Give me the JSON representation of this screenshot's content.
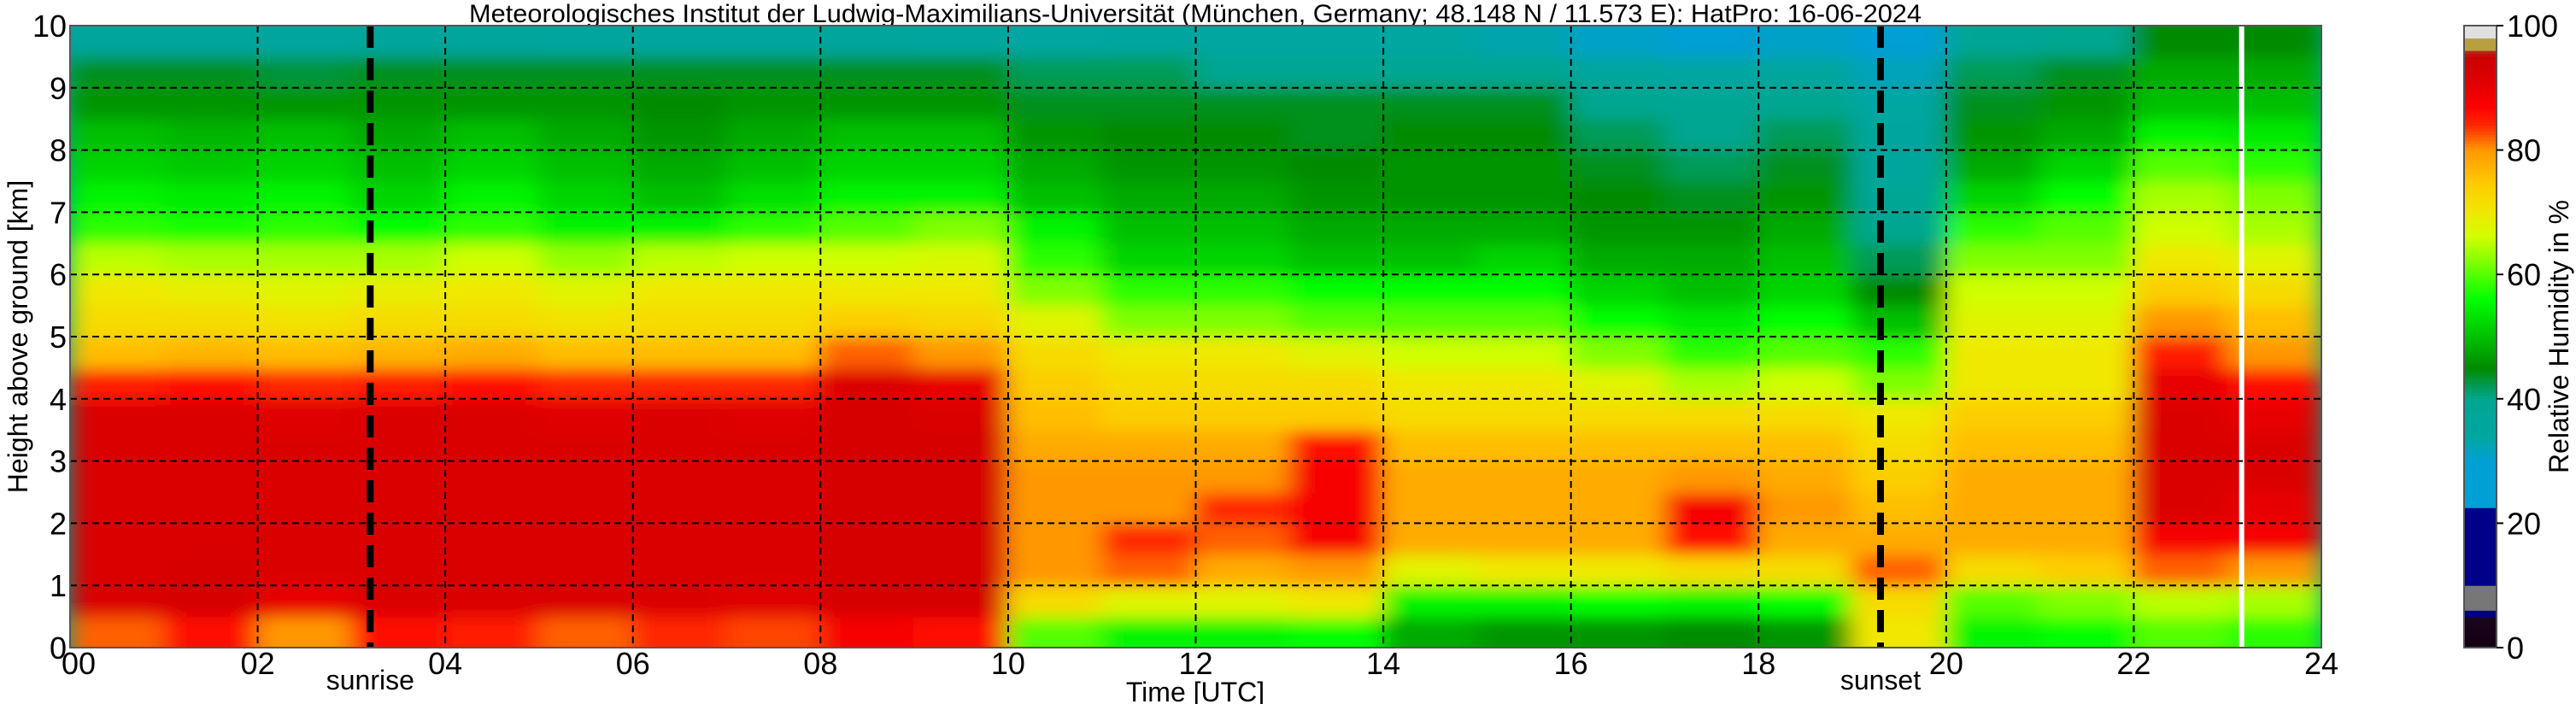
{
  "chart_data": {
    "type": "heatmap",
    "title": "Meteorologisches Institut der Ludwig-Maximilians-Universität (München, Germany; 48.148 N / 11.573 E):    HatPro: 16-06-2024",
    "xlabel": "Time [UTC]",
    "ylabel": "Height above ground [km]",
    "colorbar_label": "Relative Humidity in %",
    "xlim": [
      0,
      24
    ],
    "ylim": [
      0,
      10
    ],
    "clim": [
      0,
      100
    ],
    "grid": true,
    "x_ticks": [
      "00",
      "02",
      "04",
      "06",
      "08",
      "10",
      "12",
      "14",
      "16",
      "18",
      "20",
      "22",
      "24"
    ],
    "y_ticks": [
      "0",
      "1",
      "2",
      "3",
      "4",
      "5",
      "6",
      "7",
      "8",
      "9",
      "10"
    ],
    "colorbar_ticks": [
      "0",
      "20",
      "40",
      "60",
      "80",
      "100"
    ],
    "annotations": [
      {
        "label": "sunrise",
        "time_utc": 3.2
      },
      {
        "label": "sunset",
        "time_utc": 19.3
      }
    ],
    "missing_data_time_utc": 23.15,
    "x_hours": [
      0.5,
      1.5,
      2.5,
      3.5,
      4.5,
      5.5,
      6.5,
      7.5,
      8.5,
      9.5,
      10.5,
      11.5,
      12.5,
      13.5,
      14.5,
      15.5,
      16.5,
      17.5,
      18.5,
      19.5,
      20.5,
      21.5,
      22.5,
      23.5
    ],
    "y_km": [
      0.25,
      0.75,
      1.25,
      1.75,
      2.25,
      2.75,
      3.25,
      3.75,
      4.25,
      4.75,
      5.25,
      5.75,
      6.25,
      6.75,
      7.25,
      7.75,
      8.25,
      8.75,
      9.25,
      9.75
    ],
    "profiles_by_hour": [
      [
        82,
        92,
        92,
        92,
        92,
        92,
        92,
        92,
        85,
        76,
        72,
        70,
        65,
        58,
        55,
        52,
        50,
        46,
        44,
        36
      ],
      [
        86,
        93,
        93,
        92,
        92,
        92,
        92,
        92,
        86,
        77,
        72,
        69,
        64,
        57,
        54,
        51,
        49,
        46,
        44,
        36
      ],
      [
        80,
        90,
        92,
        92,
        92,
        92,
        92,
        91,
        84,
        76,
        71,
        68,
        64,
        58,
        55,
        52,
        50,
        46,
        43,
        35
      ],
      [
        86,
        92,
        92,
        92,
        92,
        92,
        92,
        92,
        85,
        77,
        72,
        69,
        64,
        56,
        52,
        50,
        48,
        46,
        44,
        36
      ],
      [
        85,
        92,
        92,
        92,
        92,
        92,
        92,
        92,
        86,
        78,
        72,
        70,
        66,
        58,
        55,
        52,
        50,
        46,
        44,
        36
      ],
      [
        82,
        92,
        92,
        92,
        92,
        92,
        92,
        91,
        84,
        76,
        71,
        68,
        63,
        55,
        52,
        50,
        48,
        46,
        44,
        35
      ],
      [
        84,
        92,
        92,
        92,
        92,
        92,
        92,
        92,
        84,
        76,
        72,
        70,
        65,
        55,
        50,
        48,
        46,
        45,
        44,
        35
      ],
      [
        83,
        91,
        92,
        92,
        92,
        92,
        92,
        91,
        84,
        76,
        72,
        70,
        66,
        58,
        53,
        50,
        48,
        46,
        44,
        35
      ],
      [
        88,
        93,
        93,
        93,
        93,
        93,
        93,
        93,
        92,
        82,
        74,
        70,
        66,
        60,
        55,
        52,
        50,
        46,
        44,
        36
      ],
      [
        86,
        93,
        93,
        93,
        93,
        93,
        93,
        92,
        90,
        80,
        73,
        70,
        67,
        62,
        55,
        52,
        50,
        46,
        44,
        35
      ],
      [
        60,
        72,
        80,
        80,
        80,
        80,
        78,
        76,
        74,
        72,
        68,
        62,
        58,
        55,
        50,
        48,
        46,
        44,
        42,
        34
      ],
      [
        55,
        68,
        82,
        84,
        80,
        80,
        78,
        74,
        72,
        70,
        62,
        58,
        52,
        50,
        48,
        46,
        45,
        44,
        42,
        35
      ],
      [
        55,
        68,
        78,
        82,
        84,
        80,
        78,
        74,
        72,
        70,
        62,
        58,
        52,
        50,
        48,
        46,
        45,
        44,
        40,
        34
      ],
      [
        56,
        70,
        80,
        88,
        88,
        88,
        86,
        74,
        72,
        68,
        60,
        56,
        50,
        48,
        46,
        45,
        44,
        44,
        40,
        34
      ],
      [
        48,
        55,
        68,
        78,
        78,
        78,
        76,
        72,
        70,
        66,
        60,
        56,
        50,
        48,
        46,
        46,
        45,
        44,
        40,
        34
      ],
      [
        46,
        55,
        70,
        78,
        78,
        78,
        76,
        72,
        70,
        66,
        60,
        56,
        52,
        48,
        46,
        46,
        45,
        44,
        40,
        33
      ],
      [
        46,
        56,
        70,
        78,
        78,
        78,
        76,
        72,
        68,
        62,
        56,
        52,
        48,
        46,
        45,
        44,
        42,
        40,
        36,
        31
      ],
      [
        45,
        55,
        72,
        86,
        88,
        80,
        76,
        72,
        64,
        58,
        54,
        50,
        48,
        46,
        44,
        42,
        40,
        38,
        34,
        30
      ],
      [
        46,
        56,
        72,
        78,
        80,
        78,
        76,
        72,
        66,
        60,
        56,
        52,
        50,
        48,
        46,
        44,
        42,
        40,
        36,
        31
      ],
      [
        70,
        72,
        82,
        78,
        76,
        74,
        72,
        70,
        62,
        58,
        50,
        45,
        42,
        40,
        38,
        36,
        35,
        34,
        32,
        30
      ],
      [
        55,
        60,
        72,
        78,
        78,
        78,
        76,
        74,
        70,
        70,
        68,
        66,
        62,
        58,
        52,
        48,
        46,
        44,
        42,
        38
      ],
      [
        56,
        62,
        74,
        78,
        78,
        78,
        76,
        74,
        70,
        70,
        68,
        66,
        62,
        60,
        56,
        52,
        48,
        46,
        44,
        40
      ],
      [
        60,
        65,
        82,
        88,
        92,
        92,
        92,
        92,
        90,
        85,
        80,
        74,
        70,
        66,
        64,
        60,
        55,
        50,
        48,
        45
      ],
      [
        58,
        64,
        80,
        88,
        90,
        92,
        92,
        90,
        86,
        80,
        76,
        72,
        68,
        64,
        62,
        58,
        54,
        50,
        48,
        45
      ]
    ]
  }
}
